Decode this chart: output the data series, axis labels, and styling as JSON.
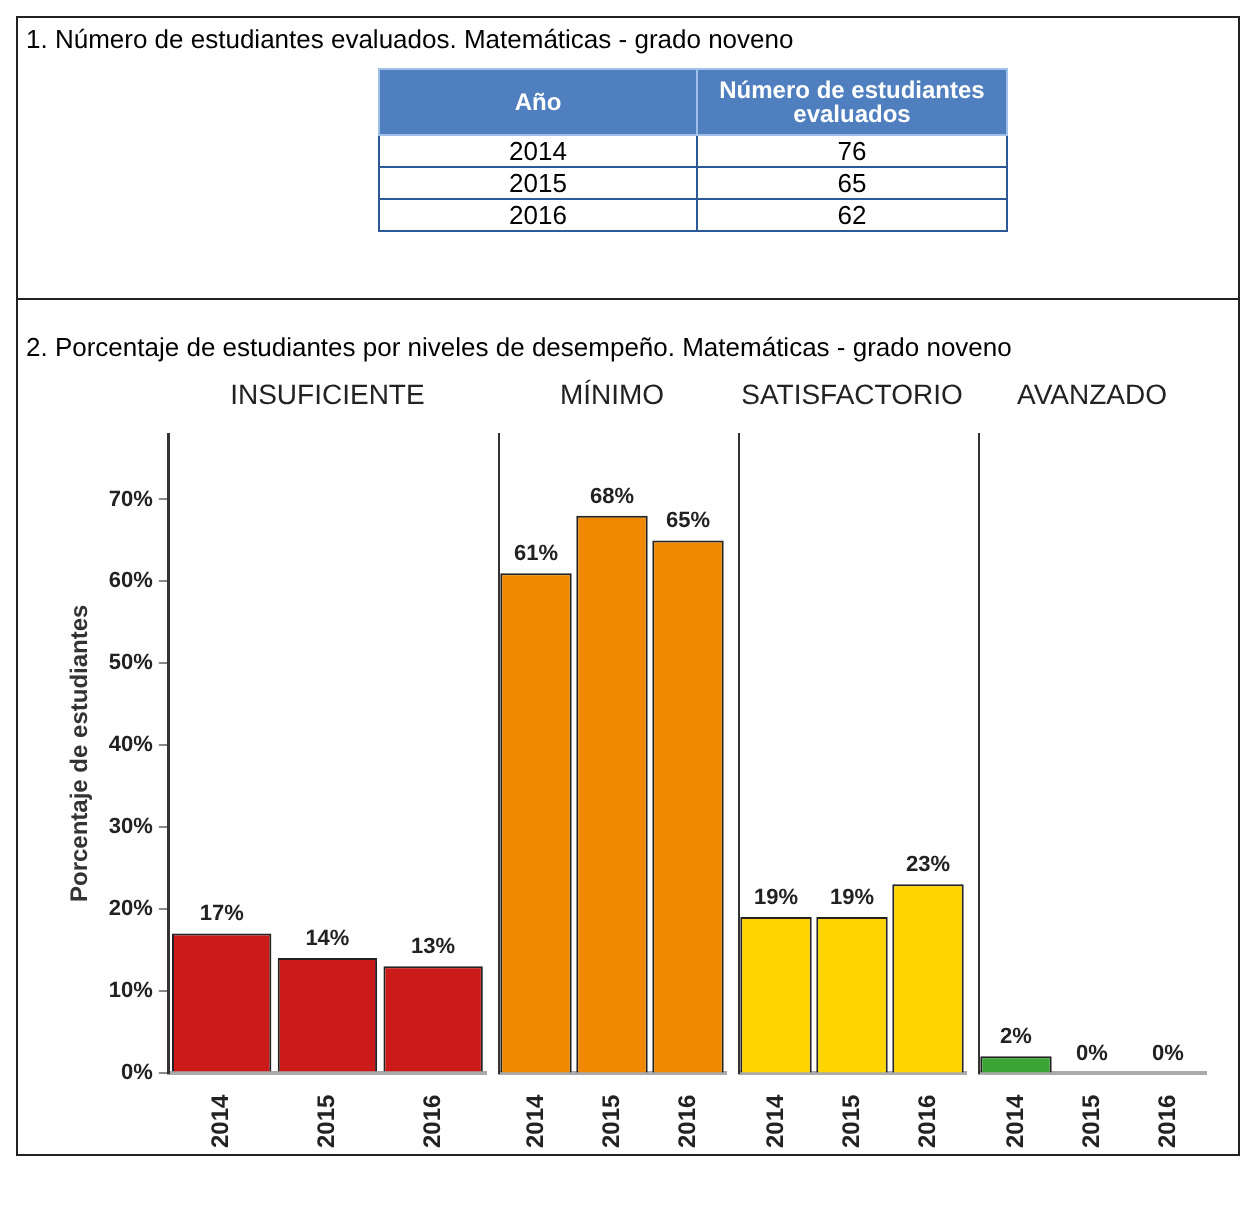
{
  "chart_data": [
    {
      "type": "other",
      "title": "1. Número de estudiantes evaluados. Matemáticas - grado noveno",
      "xlabel": "Año",
      "ylabel": "Número de estudiantes evaluados",
      "categories": [
        "2014",
        "2015",
        "2016"
      ],
      "values": [
        76,
        65,
        62
      ],
      "data_labels": true
    },
    {
      "type": "bar",
      "title": "2. Porcentaje de estudiantes por niveles de desempeño. Matemáticas - grado noveno",
      "subtitle": "INSUFICIENTE",
      "ylabel": "Porcentaje de estudiantes",
      "categories": [
        "2014",
        "2015",
        "2016"
      ],
      "values": [
        17,
        14,
        13
      ],
      "color": "#cc1a1a",
      "value_labels": [
        "17%",
        "14%",
        "13%"
      ],
      "ylim": [
        0,
        78
      ],
      "yticks": [
        {
          "value": 0,
          "label": "0%"
        },
        {
          "value": 10,
          "label": "10%"
        },
        {
          "value": 20,
          "label": "20%"
        },
        {
          "value": 30,
          "label": "30%"
        },
        {
          "value": 40,
          "label": "40%"
        },
        {
          "value": 50,
          "label": "50%"
        },
        {
          "value": 60,
          "label": "60%"
        },
        {
          "value": 70,
          "label": "70%"
        }
      ]
    },
    {
      "type": "bar",
      "subtitle": "MÍNIMO",
      "categories": [
        "2014",
        "2015",
        "2016"
      ],
      "values": [
        61,
        68,
        65
      ],
      "color": "#f08800",
      "value_labels": [
        "61%",
        "68%",
        "65%"
      ],
      "ylim": [
        0,
        78
      ],
      "tick_labels": "x"
    },
    {
      "type": "bar",
      "subtitle": "SATISFACTORIO",
      "categories": [
        "2014",
        "2015",
        "2016"
      ],
      "values": [
        19,
        19,
        23
      ],
      "color": "#ffd500",
      "value_labels": [
        "19%",
        "19%",
        "23%"
      ],
      "ylim": [
        0,
        78
      ],
      "tick_labels": "x"
    },
    {
      "type": "bar",
      "subtitle": "AVANZADO",
      "categories": [
        "2014",
        "2015",
        "2016"
      ],
      "values": [
        2,
        0,
        0
      ],
      "color": "#3aa535",
      "value_labels": [
        "2%",
        "0%",
        "0%"
      ],
      "ylim": [
        0,
        78
      ],
      "tick_labels": "x"
    }
  ]
}
